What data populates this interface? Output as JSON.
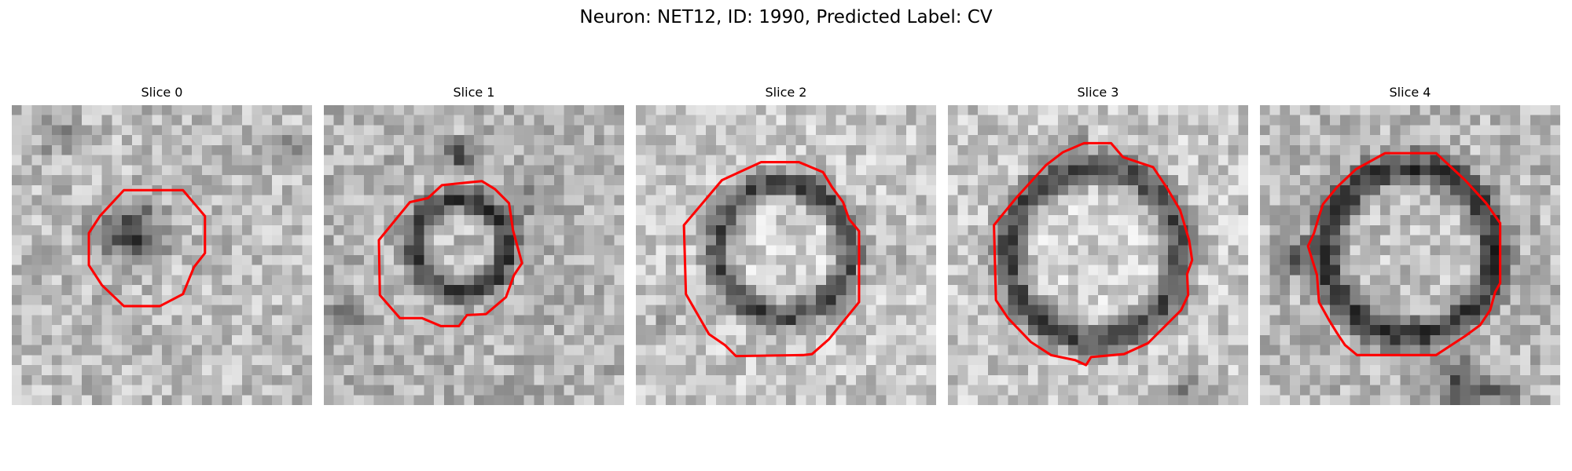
{
  "suptitle": "Neuron: NET12, ID: 1990, Predicted Label: CV",
  "contour_color": "#ff0000",
  "colormap": "grayscale",
  "panels": [
    {
      "title": "Slice 0",
      "icon": "membrane-slice-image"
    },
    {
      "title": "Slice 1",
      "icon": "membrane-slice-image"
    },
    {
      "title": "Slice 2",
      "icon": "membrane-slice-image"
    },
    {
      "title": "Slice 3",
      "icon": "membrane-slice-image"
    },
    {
      "title": "Slice 4",
      "icon": "membrane-slice-image"
    }
  ]
}
